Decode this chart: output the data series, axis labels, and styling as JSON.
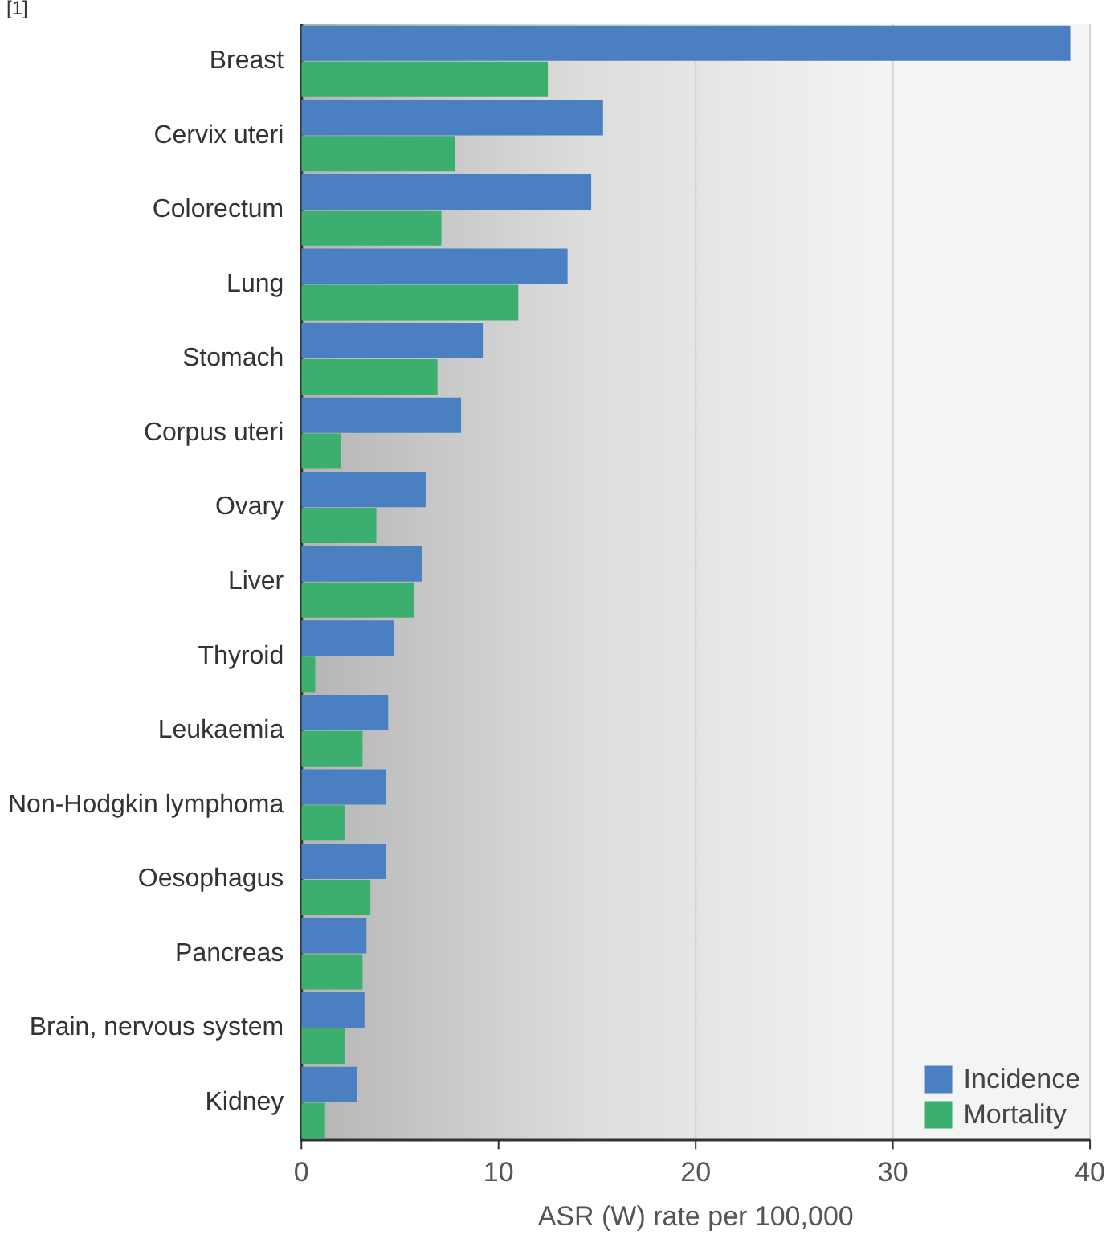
{
  "chart_data": {
    "type": "bar",
    "orientation": "horizontal",
    "xlabel": "ASR (W) rate per 100,000",
    "categories": [
      "Breast",
      "Cervix uteri",
      "Colorectum",
      "Lung",
      "Stomach",
      "Corpus uteri",
      "Ovary",
      "Liver",
      "Thyroid",
      "Leukaemia",
      "Non-Hodgkin lymphoma",
      "Oesophagus",
      "Pancreas",
      "Brain, nervous system",
      "Kidney"
    ],
    "series": [
      {
        "name": "Incidence",
        "color": "#4a7fc1",
        "values": [
          39.0,
          15.3,
          14.7,
          13.5,
          9.2,
          8.1,
          6.3,
          6.1,
          4.7,
          4.4,
          4.3,
          4.3,
          3.3,
          3.2,
          2.8
        ]
      },
      {
        "name": "Mortality",
        "color": "#3cae6e",
        "values": [
          12.5,
          7.8,
          7.1,
          11.0,
          6.9,
          2.0,
          3.8,
          5.7,
          0.7,
          3.1,
          2.2,
          3.5,
          3.1,
          2.2,
          1.2
        ]
      }
    ],
    "xlim": [
      0,
      40
    ],
    "xticks": [
      0,
      10,
      20,
      30,
      40
    ],
    "grid": "x",
    "legend": "bottom right",
    "annotations": [
      "[1]"
    ]
  }
}
